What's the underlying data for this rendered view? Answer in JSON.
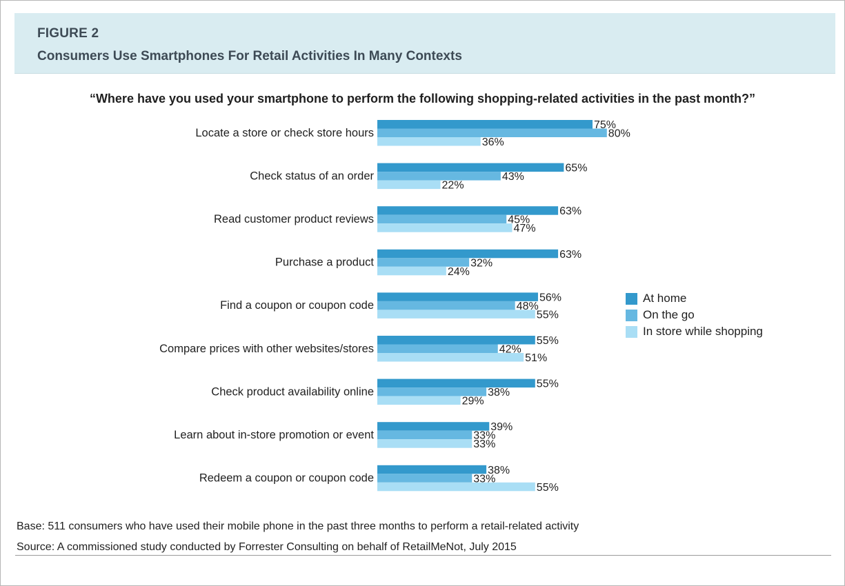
{
  "figure": {
    "label": "FIGURE 2",
    "title": "Consumers Use Smartphones For Retail Activities In Many Contexts"
  },
  "chart_data": {
    "type": "bar",
    "orientation": "horizontal",
    "title": "“Where have you used your smartphone to perform the following shopping-related activities in the past month?”",
    "categories": [
      "Locate a store or check store hours",
      "Check status of an order",
      "Read customer product reviews",
      "Purchase a product",
      "Find a coupon or coupon code",
      "Compare prices with other websites/stores",
      "Check product availability online",
      "Learn about in-store promotion or event",
      "Redeem a coupon or coupon code"
    ],
    "series": [
      {
        "name": "At home",
        "color": "#3399cc",
        "values": [
          75,
          65,
          63,
          63,
          56,
          55,
          55,
          39,
          38
        ]
      },
      {
        "name": "On the go",
        "color": "#66b8e1",
        "values": [
          80,
          43,
          45,
          32,
          48,
          42,
          38,
          33,
          33
        ]
      },
      {
        "name": "In store while shopping",
        "color": "#a9def5",
        "values": [
          36,
          22,
          47,
          24,
          55,
          51,
          29,
          33,
          55
        ]
      }
    ],
    "value_suffix": "%",
    "legend_position": "right",
    "grid": false
  },
  "notes": {
    "base": "Base: 511 consumers who have used their mobile phone in the past three months to perform a retail-related activity",
    "source": "Source: A commissioned study conducted by Forrester Consulting on behalf of RetailMeNot, July 2015"
  }
}
